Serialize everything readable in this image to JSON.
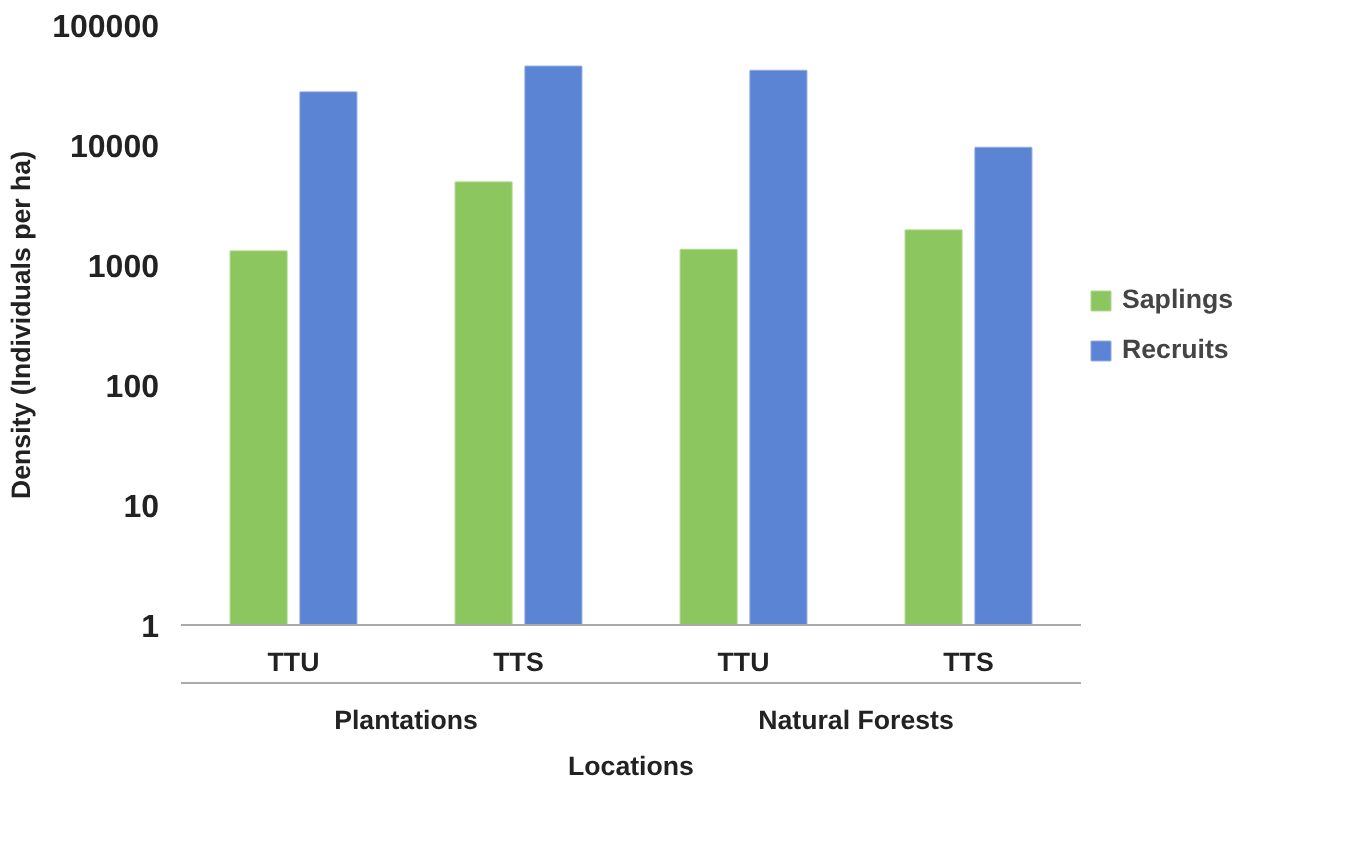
{
  "chart_data": {
    "type": "bar",
    "categories": [
      "TTU",
      "TTS",
      "TTU",
      "TTS"
    ],
    "annotations": [
      "Plantations",
      "Natural Forests"
    ],
    "xlabel": "Locations",
    "ylabel": "Density (Individuals per ha)",
    "series": [
      {
        "name": "Saplings",
        "color": "#8cc65e",
        "values": [
          1300,
          4900,
          1340,
          1950
        ]
      },
      {
        "name": "Recruits",
        "color": "#5b84d4",
        "values": [
          27500,
          45000,
          41500,
          9500
        ]
      }
    ],
    "log": true,
    "ylim": [
      1,
      100000
    ],
    "yticks": [
      1,
      10,
      100,
      1000,
      10000,
      100000
    ],
    "grid": false,
    "legend": "right"
  }
}
